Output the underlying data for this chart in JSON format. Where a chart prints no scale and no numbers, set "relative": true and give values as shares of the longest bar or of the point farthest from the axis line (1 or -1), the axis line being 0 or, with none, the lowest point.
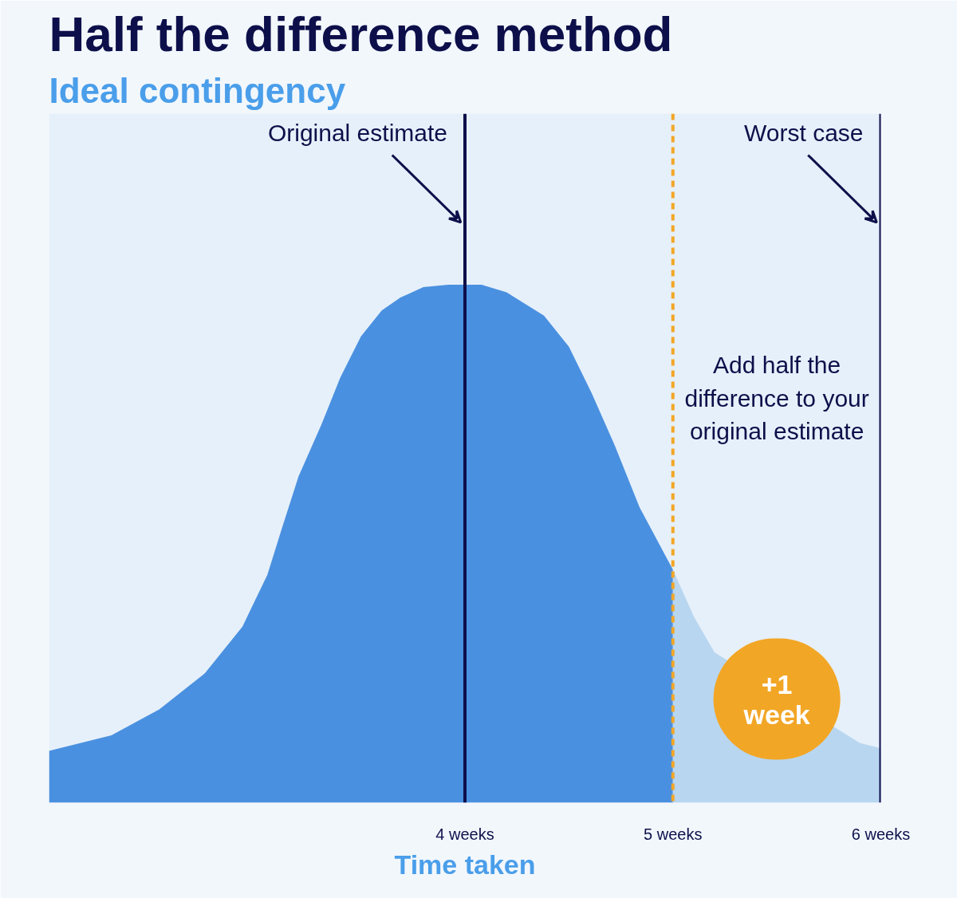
{
  "chart_data": {
    "type": "area",
    "title": "Half the difference method",
    "subtitle": "Ideal contingency",
    "xlabel": "Time taken",
    "relative": true,
    "grid": false,
    "tick_labels": "x",
    "xlim": [
      2,
      6
    ],
    "xticks": [
      {
        "value": 4,
        "label": "4 weeks"
      },
      {
        "value": 5,
        "label": "5 weeks"
      },
      {
        "value": 6,
        "label": "6 weeks"
      }
    ],
    "series": [
      {
        "color": "#4a90e0",
        "x": [
          2,
          2.3,
          2.53,
          2.75,
          2.93,
          3.05,
          3.12,
          3.2,
          3.31,
          3.4,
          3.5,
          3.6,
          3.69,
          3.8,
          3.92,
          4,
          4.08,
          4.2,
          4.38,
          4.5,
          4.61,
          4.72,
          4.84,
          4.92,
          5
        ],
        "values": [
          0.1,
          0.13,
          0.18,
          0.25,
          0.34,
          0.44,
          0.53,
          0.63,
          0.73,
          0.82,
          0.9,
          0.95,
          0.975,
          0.995,
          1.0,
          1.0,
          1.0,
          0.985,
          0.94,
          0.88,
          0.79,
          0.69,
          0.57,
          0.51,
          0.45
        ]
      },
      {
        "color": "#b8d6f0",
        "x": [
          5,
          5.1,
          5.2,
          5.4,
          5.6,
          5.8,
          5.9,
          6
        ],
        "values": [
          0.45,
          0.36,
          0.29,
          null,
          null,
          null,
          0.115,
          0.105
        ]
      }
    ],
    "ref_lines": [
      {
        "axis": "x",
        "value": 4,
        "label": "Original estimate",
        "color": "#0d0f4a",
        "line_style": "solid"
      },
      {
        "axis": "x",
        "value": 5,
        "label": null,
        "color": "#f2a626",
        "line_style": "dashed"
      },
      {
        "axis": "x",
        "value": 6,
        "label": "Worst case",
        "color": "#0d0f4a",
        "line_style": "solid"
      }
    ],
    "annotations": [
      "Add half the difference to your original estimate",
      "+1 week"
    ]
  }
}
